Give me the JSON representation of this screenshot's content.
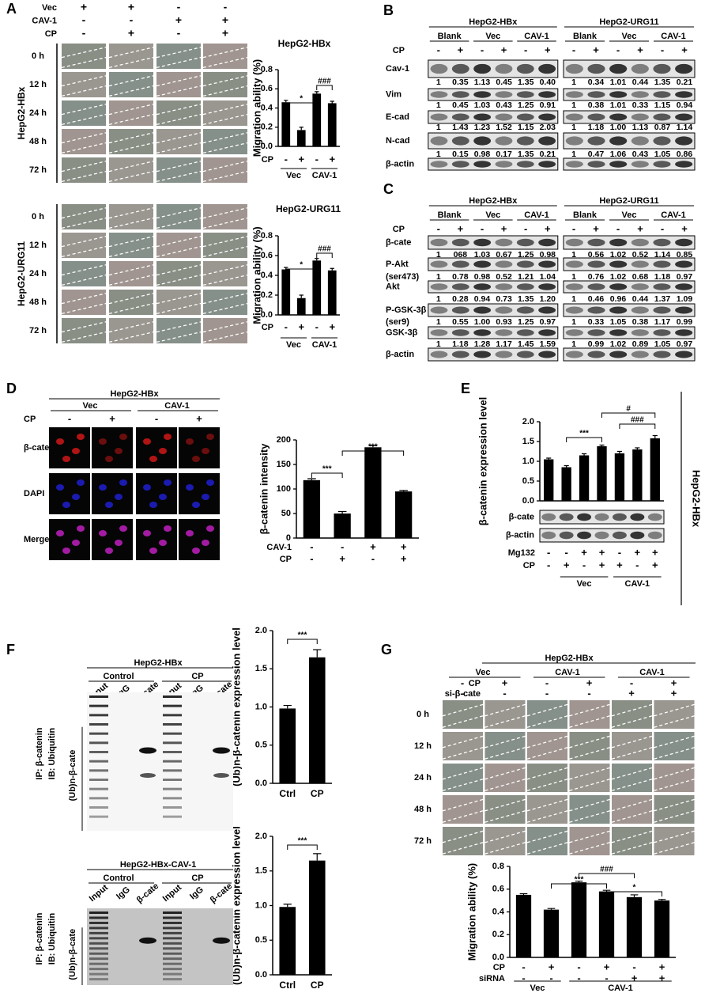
{
  "panels": {
    "A": {
      "label": "A",
      "rows": [
        {
          "name": "Vec",
          "signs": [
            "+",
            "+",
            "-",
            "-"
          ]
        },
        {
          "name": "CAV-1",
          "signs": [
            "-",
            "-",
            "+",
            "+"
          ]
        },
        {
          "name": "CP",
          "signs": [
            "-",
            "+",
            "-",
            "+"
          ]
        }
      ],
      "cell_lines": [
        "HepG2-HBx",
        "HepG2-URG11"
      ],
      "times": [
        "0 h",
        "12 h",
        "24 h",
        "48 h",
        "72 h"
      ]
    },
    "B": {
      "label": "B",
      "cell_lines": [
        "HepG2-HBx",
        "HepG2-URG11"
      ],
      "groups": [
        "Blank",
        "Vec",
        "CAV-1"
      ],
      "cp_label": "CP",
      "cp_signs": [
        "-",
        "+",
        "-",
        "+",
        "-",
        "+"
      ],
      "proteins": [
        "Cav-1",
        "Vim",
        "E-cad",
        "N-cad",
        "β-actin"
      ],
      "quant": [
        [
          [
            "1",
            "0.35",
            "1.13",
            "0.45",
            "1.35",
            "0.40"
          ],
          [
            "1",
            "0.34",
            "1.01",
            "0.44",
            "1.35",
            "0.21"
          ]
        ],
        [
          [
            "1",
            "0.45",
            "1.03",
            "0.43",
            "1.25",
            "0.91"
          ],
          [
            "1",
            "0.38",
            "1.01",
            "0.33",
            "1.15",
            "0.94"
          ]
        ],
        [
          [
            "1",
            "1.43",
            "1.23",
            "1.52",
            "1.15",
            "2.03"
          ],
          [
            "1",
            "1.18",
            "1.00",
            "1.13",
            "0.87",
            "1.14"
          ]
        ],
        [
          [
            "1",
            "0.15",
            "0.98",
            "0.17",
            "1.35",
            "0.21"
          ],
          [
            "1",
            "0.47",
            "1.06",
            "0.43",
            "1.05",
            "0.86"
          ]
        ]
      ]
    },
    "C": {
      "label": "C",
      "cell_lines": [
        "HepG2-HBx",
        "HepG2-URG11"
      ],
      "groups": [
        "Blank",
        "Vec",
        "CAV-1"
      ],
      "cp_label": "CP",
      "cp_signs": [
        "-",
        "+",
        "-",
        "+",
        "-",
        "+"
      ],
      "proteins": [
        "β-cate",
        "P-Akt",
        "Akt",
        "P-GSK-3β",
        "GSK-3β",
        "β-actin"
      ],
      "sublabels": [
        "(ser473)",
        "(ser9)"
      ],
      "quant": [
        [
          [
            "1",
            "068",
            "1.03",
            "0.67",
            "1.25",
            "0.98"
          ],
          [
            "1",
            "0.56",
            "1.02",
            "0.52",
            "1.14",
            "0.85"
          ]
        ],
        [
          [
            "1",
            "0.78",
            "0.98",
            "0.52",
            "1.21",
            "1.04"
          ],
          [
            "1",
            "0.76",
            "1.02",
            "0.68",
            "1.18",
            "0.97"
          ]
        ],
        [
          [
            "1",
            "0.28",
            "0.94",
            "0.73",
            "1.35",
            "1.20"
          ],
          [
            "1",
            "0.46",
            "0.96",
            "0.44",
            "1.37",
            "1.09"
          ]
        ],
        [
          [
            "1",
            "0.55",
            "1.00",
            "0.93",
            "1.25",
            "0.97"
          ],
          [
            "1",
            "0.33",
            "1.05",
            "0.38",
            "1.17",
            "0.99"
          ]
        ],
        [
          [
            "1",
            "1.18",
            "1.28",
            "1.17",
            "1.45",
            "1.59"
          ],
          [
            "1",
            "0.99",
            "1.02",
            "0.89",
            "1.05",
            "0.97"
          ]
        ]
      ]
    },
    "D": {
      "label": "D",
      "cell_line": "HepG2-HBx",
      "groups": [
        "Vec",
        "CAV-1"
      ],
      "cp_label": "CP",
      "cp_signs": [
        "-",
        "+",
        "-",
        "+"
      ],
      "stains": [
        "β-cate",
        "DAPI",
        "Merge"
      ]
    },
    "E": {
      "label": "E",
      "blots": [
        "β-cate",
        "β-actin"
      ],
      "cell_line": "HepG2-HBx"
    },
    "F": {
      "label": "F",
      "blocks": [
        {
          "cell_line": "HepG2-HBx",
          "groups": [
            "Control",
            "CP"
          ],
          "lanes": [
            "Input",
            "IgG",
            "β-cate",
            "Input",
            "IgG",
            "β-cate"
          ],
          "ip": "IP: β-catenin",
          "ib": "IB: Ubiquitin",
          "band": "(Ub)n-β-cate"
        },
        {
          "cell_line": "HepG2-HBx-CAV-1",
          "groups": [
            "Control",
            "CP"
          ],
          "lanes": [
            "Input",
            "IgG",
            "β-cate",
            "Input",
            "IgG",
            "β-cate"
          ],
          "ip": "IP: β-catenin",
          "ib": "IB: Ubiquitin",
          "band": "(Ub)n-β-cate"
        }
      ]
    },
    "G": {
      "label": "G",
      "cell_line": "HepG2-HBx",
      "groups": [
        "Vec",
        "CAV-1",
        "CAV-1"
      ],
      "rows": [
        {
          "name": "CP",
          "signs": [
            "-",
            "+",
            "-",
            "+",
            "-",
            "+"
          ]
        },
        {
          "name": "si-β-cate",
          "signs": [
            "-",
            "-",
            "-",
            "-",
            "+",
            "+"
          ]
        }
      ],
      "times": [
        "0 h",
        "12 h",
        "24 h",
        "48 h",
        "72 h"
      ]
    }
  },
  "chart_data": [
    {
      "type": "bar",
      "title": "HepG2-HBx",
      "ylabel": "Migration ability (%)",
      "categories": [
        null,
        null,
        null,
        null
      ],
      "values": [
        0.46,
        0.17,
        0.55,
        0.45
      ],
      "errors": [
        0.02,
        0.03,
        0.02,
        0.02
      ],
      "color": "#000000",
      "ylim": [
        0,
        0.8
      ],
      "yticks": [
        {
          "value": 0,
          "label": "0.0"
        },
        0.2,
        0.4,
        0.6,
        0.8
      ],
      "treatments": [
        {
          "name": "CP",
          "signs": [
            "-",
            "+",
            "-",
            "+"
          ]
        }
      ],
      "groups": [
        "Vec",
        "CAV-1"
      ],
      "annotations": [
        "*",
        "###"
      ]
    },
    {
      "type": "bar",
      "title": "HepG2-URG11",
      "ylabel": "Migration ability (%)",
      "categories": [
        null,
        null,
        null,
        null
      ],
      "values": [
        0.46,
        0.17,
        0.55,
        0.45
      ],
      "errors": [
        0.02,
        0.03,
        0.02,
        0.02
      ],
      "color": "#000000",
      "ylim": [
        0,
        0.8
      ],
      "yticks": [
        {
          "value": 0,
          "label": "0.0"
        },
        0.2,
        0.4,
        0.6,
        0.8
      ],
      "treatments": [
        {
          "name": "CP",
          "signs": [
            "-",
            "+",
            "-",
            "+"
          ]
        }
      ],
      "groups": [
        "Vec",
        "CAV-1"
      ],
      "annotations": [
        "*",
        "###"
      ]
    },
    {
      "type": "bar",
      "ylabel": "β-catenin intensity",
      "categories": [
        null,
        null,
        null,
        null
      ],
      "values": [
        118,
        50,
        185,
        95
      ],
      "errors": [
        3,
        4,
        3,
        2
      ],
      "color": "#000000",
      "ylim": [
        0,
        200
      ],
      "yticks": [
        0,
        50,
        100,
        150,
        200
      ],
      "treatments": [
        {
          "name": "CAV-1",
          "signs": [
            "-",
            "-",
            "+",
            "+"
          ]
        },
        {
          "name": "CP",
          "signs": [
            "-",
            "+",
            "-",
            "+"
          ]
        }
      ],
      "annotations": [
        "***",
        "***"
      ]
    },
    {
      "type": "bar",
      "ylabel": "β-catenin expression level",
      "categories": [
        null,
        null,
        null,
        null,
        null,
        null,
        null
      ],
      "values": [
        1.05,
        0.85,
        1.15,
        1.38,
        1.2,
        1.3,
        1.58
      ],
      "errors": [
        0.03,
        0.04,
        0.04,
        0.03,
        0.05,
        0.04,
        0.07
      ],
      "color": "#000000",
      "ylim": [
        0,
        2
      ],
      "yticks": [
        {
          "value": 0,
          "label": "0.0"
        },
        0.5,
        {
          "value": 1,
          "label": "1.0"
        },
        1.5,
        {
          "value": 2,
          "label": "2.0"
        }
      ],
      "treatments": [
        {
          "name": "Mg132",
          "signs": [
            "-",
            "-",
            "+",
            "+",
            "-",
            "+",
            "+"
          ]
        },
        {
          "name": "CP",
          "signs": [
            "-",
            "+",
            "-",
            "+",
            "+",
            "-",
            "+"
          ]
        }
      ],
      "groups": [
        "Vec",
        "CAV-1"
      ],
      "annotations": [
        "***",
        "#",
        "###"
      ]
    },
    {
      "type": "bar",
      "ylabel": "(Ub)n-β-catenin expression level",
      "categories": [
        "Ctrl",
        "CP"
      ],
      "values": [
        0.98,
        1.65
      ],
      "errors": [
        0.04,
        0.1
      ],
      "color": "#000000",
      "ylim": [
        0,
        2
      ],
      "yticks": [
        {
          "value": 0,
          "label": "0.0"
        },
        0.5,
        {
          "value": 1,
          "label": "1.0"
        },
        1.5,
        {
          "value": 2,
          "label": "2.0"
        }
      ],
      "annotations": [
        "***"
      ]
    },
    {
      "type": "bar",
      "ylabel": "(Ub)n-β-catenin expression level",
      "categories": [
        "Ctrl",
        "CP"
      ],
      "values": [
        0.98,
        1.65
      ],
      "errors": [
        0.04,
        0.1
      ],
      "color": "#000000",
      "ylim": [
        0,
        2
      ],
      "yticks": [
        {
          "value": 0,
          "label": "0.0"
        },
        0.5,
        {
          "value": 1,
          "label": "1.0"
        },
        1.5,
        {
          "value": 2,
          "label": "2.0"
        }
      ],
      "annotations": [
        "***"
      ]
    },
    {
      "type": "bar",
      "ylabel": "Migration ability (%)",
      "categories": [
        null,
        null,
        null,
        null,
        null,
        null
      ],
      "values": [
        0.55,
        0.42,
        0.66,
        0.58,
        0.53,
        0.5
      ],
      "errors": [
        0.01,
        0.01,
        0.01,
        0.01,
        0.02,
        0.01
      ],
      "color": "#000000",
      "ylim": [
        0,
        0.8
      ],
      "yticks": [
        {
          "value": 0,
          "label": "0.0"
        },
        0.2,
        0.4,
        0.6,
        0.8
      ],
      "treatments": [
        {
          "name": "CP",
          "signs": [
            "-",
            "+",
            "-",
            "+",
            "-",
            "+"
          ]
        },
        {
          "name": "siRNA",
          "signs": [
            "-",
            "-",
            "-",
            "-",
            "+",
            "+"
          ]
        }
      ],
      "groups": [
        "Vec",
        "CAV-1"
      ],
      "annotations": [
        "***",
        "###",
        "*"
      ]
    }
  ]
}
